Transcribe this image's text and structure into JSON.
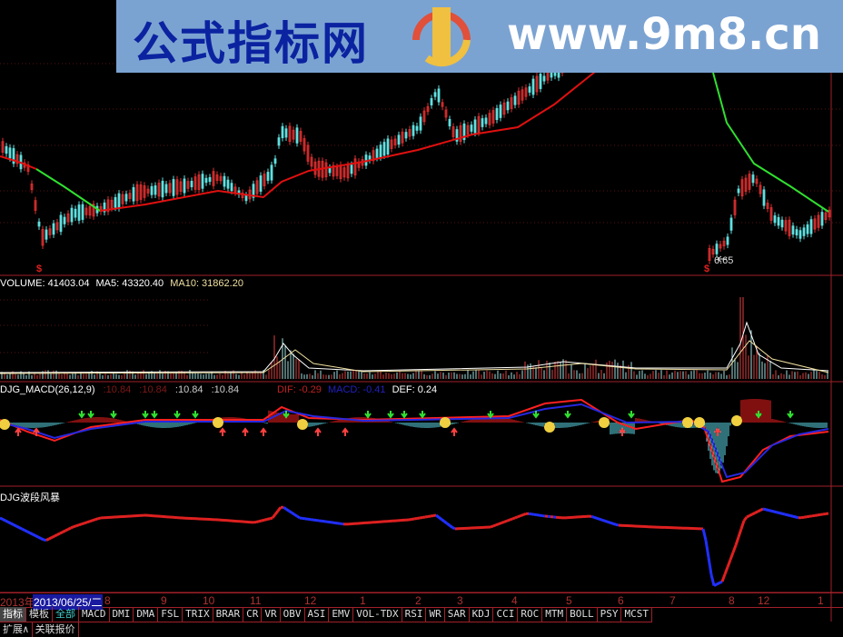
{
  "watermark": {
    "title": "公式指标网",
    "url": "www.9m8.cn",
    "logo_text": "www.9m8.cn"
  },
  "price_panel": {
    "low_label": "6.65",
    "signal_marks": [
      "$",
      "$"
    ],
    "ma_up_color": "#e01010",
    "ma_down_color": "#30e030"
  },
  "volume_panel": {
    "label_volume": "VOLUME: 41403.04",
    "label_ma5": "MA5: 43320.40",
    "label_ma10": "MA10: 31862.20"
  },
  "macd_panel": {
    "title": "DJG_MACD(26,12,9)",
    "v1": ":10.84",
    "v2": ":10.84",
    "v3": ":10.84",
    "v4": ":10.84",
    "dif": "DIF: -0.29",
    "macd": "MACD: -0.41",
    "def": "DEF: 0.24"
  },
  "wave_panel": {
    "title": "DJG波段风暴"
  },
  "date_axis": {
    "year": "2013年",
    "cursor_date": "2013/06/25/二",
    "months": [
      "8",
      "9",
      "10",
      "11",
      "12",
      "1",
      "2",
      "3",
      "4",
      "5",
      "6",
      "7",
      "8",
      "12",
      "1"
    ]
  },
  "tabs": [
    "指标",
    "模板",
    "全部",
    "MACD",
    "DMI",
    "DMA",
    "FSL",
    "TRIX",
    "BRAR",
    "CR",
    "VR",
    "OBV",
    "ASI",
    "EMV",
    "VOL-TDX",
    "RSI",
    "WR",
    "SAR",
    "KDJ",
    "CCI",
    "ROC",
    "MTM",
    "BOLL",
    "PSY",
    "MCST"
  ],
  "bottom_tabs": [
    "扩展∧",
    "关联报价"
  ]
}
